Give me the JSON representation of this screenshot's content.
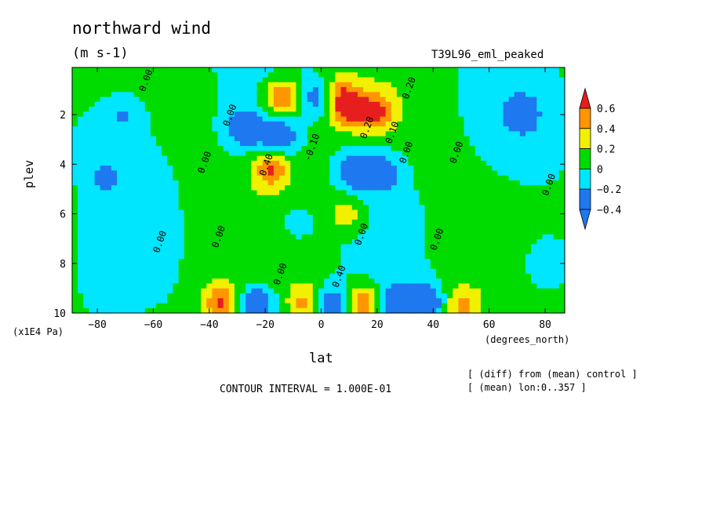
{
  "header": {
    "title": "northward wind",
    "units": "(m s-1)",
    "run_name": "T39L96_eml_peaked"
  },
  "axes": {
    "ylabel": "plev",
    "yunit": "(x1E4 Pa)",
    "xlabel": "lat",
    "xunit": "(degrees_north)"
  },
  "footer": {
    "contour_interval": "CONTOUR INTERVAL = 1.000E-01",
    "note_diff": "[ (diff) from (mean) control ]",
    "note_mean": "[ (mean) lon:0..357 ]"
  },
  "colors": {
    "le_-0.4": "#1e78f0",
    "-0.4_-0.2": "#1e78f0",
    "-0.2_0": "#00e6ff",
    "0_0.2": "#00dc00",
    "0.2_0.4": "#f0f000",
    "0.4_0.6": "#ff9600",
    "ge_0.6": "#e61e1e"
  },
  "chart_data": {
    "type": "heatmap",
    "title": "northward wind",
    "subtitle": "(m s-1)",
    "xlabel": "lat",
    "ylabel": "plev",
    "xlim": [
      -89,
      87
    ],
    "ylim": [
      10,
      0.1
    ],
    "x_ticks": [
      -80,
      -60,
      -40,
      -20,
      0,
      20,
      40,
      60,
      80
    ],
    "x_tick_labels": [
      "-80",
      "-60",
      "-40",
      "-20",
      "0",
      "20",
      "40",
      "60",
      "80"
    ],
    "y_ticks": [
      2,
      4,
      6,
      8,
      10
    ],
    "y_tick_labels": [
      "2",
      "4",
      "6",
      "8",
      "10"
    ],
    "colorbar": {
      "levels": [
        -0.4,
        -0.2,
        0,
        0.2,
        0.4,
        0.6
      ],
      "labels": [
        "−0.4",
        "−0.2",
        "0",
        "0.2",
        "0.4",
        "0.6"
      ],
      "colors": [
        "#1e78f0",
        "#00e6ff",
        "#00dc00",
        "#f0f000",
        "#ff9600",
        "#e61e1e"
      ]
    },
    "contour_labels": [
      {
        "text": "0.00",
        "lat": -33,
        "plev": 2.5
      },
      {
        "text": "0.00",
        "lat": -63,
        "plev": 1.1
      },
      {
        "text": "0.00",
        "lat": -42,
        "plev": 4.4
      },
      {
        "text": "0.40",
        "lat": -20,
        "plev": 4.5
      },
      {
        "text": "-0.10",
        "lat": -4,
        "plev": 3.9
      },
      {
        "text": "0.00",
        "lat": 30,
        "plev": 4.0
      },
      {
        "text": "0.00",
        "lat": 48,
        "plev": 4.0
      },
      {
        "text": "0.20",
        "lat": 31,
        "plev": 1.4
      },
      {
        "text": "0.20",
        "lat": 16,
        "plev": 3.0
      },
      {
        "text": "0.10",
        "lat": 25,
        "plev": 3.2
      },
      {
        "text": "0.00",
        "lat": -37,
        "plev": 7.4
      },
      {
        "text": "0.00",
        "lat": -58,
        "plev": 7.6
      },
      {
        "text": "0.00",
        "lat": 14,
        "plev": 7.3
      },
      {
        "text": "0.00",
        "lat": 41,
        "plev": 7.5
      },
      {
        "text": "0.00",
        "lat": 81,
        "plev": 5.3
      },
      {
        "text": "0.00",
        "lat": -15,
        "plev": 8.9
      },
      {
        "text": "0.40",
        "lat": 6,
        "plev": 9.0
      }
    ],
    "blobs": [
      {
        "lat": -18,
        "plev": 4.2,
        "v": 0.55
      },
      {
        "lat": -14,
        "plev": 1.3,
        "v": 0.6
      },
      {
        "lat": 10,
        "plev": 1.8,
        "v": 0.6
      },
      {
        "lat": 20,
        "plev": 1.9,
        "v": 0.55
      },
      {
        "lat": 6,
        "plev": 1.2,
        "v": 0.5
      },
      {
        "lat": -27,
        "plev": 2.6,
        "v": -0.5
      },
      {
        "lat": -15,
        "plev": 2.9,
        "v": -0.45
      },
      {
        "lat": 0,
        "plev": 1.3,
        "v": -0.5
      },
      {
        "lat": 13,
        "plev": 4.3,
        "v": -0.55
      },
      {
        "lat": 22,
        "plev": 4.3,
        "v": -0.4
      },
      {
        "lat": -36,
        "plev": 9.6,
        "v": 0.55
      },
      {
        "lat": -23,
        "plev": 9.6,
        "v": -0.55
      },
      {
        "lat": -5,
        "plev": 9.6,
        "v": 0.45
      },
      {
        "lat": 3,
        "plev": 9.7,
        "v": -0.55
      },
      {
        "lat": 15,
        "plev": 9.6,
        "v": 0.55
      },
      {
        "lat": 27,
        "plev": 9.6,
        "v": -0.45
      },
      {
        "lat": 38,
        "plev": 9.6,
        "v": -0.5
      },
      {
        "lat": 50,
        "plev": 9.7,
        "v": 0.4
      },
      {
        "lat": 9,
        "plev": 6.0,
        "v": 0.3
      },
      {
        "lat": -9,
        "plev": 6.4,
        "v": -0.2
      },
      {
        "lat": -78,
        "plev": 4.5,
        "v": -0.18
      },
      {
        "lat": 72,
        "plev": 2.0,
        "v": -0.22
      },
      {
        "lat": -70,
        "plev": 2.0,
        "v": -0.22
      },
      {
        "lat": 80,
        "plev": 8.0,
        "v": -0.18
      }
    ]
  }
}
